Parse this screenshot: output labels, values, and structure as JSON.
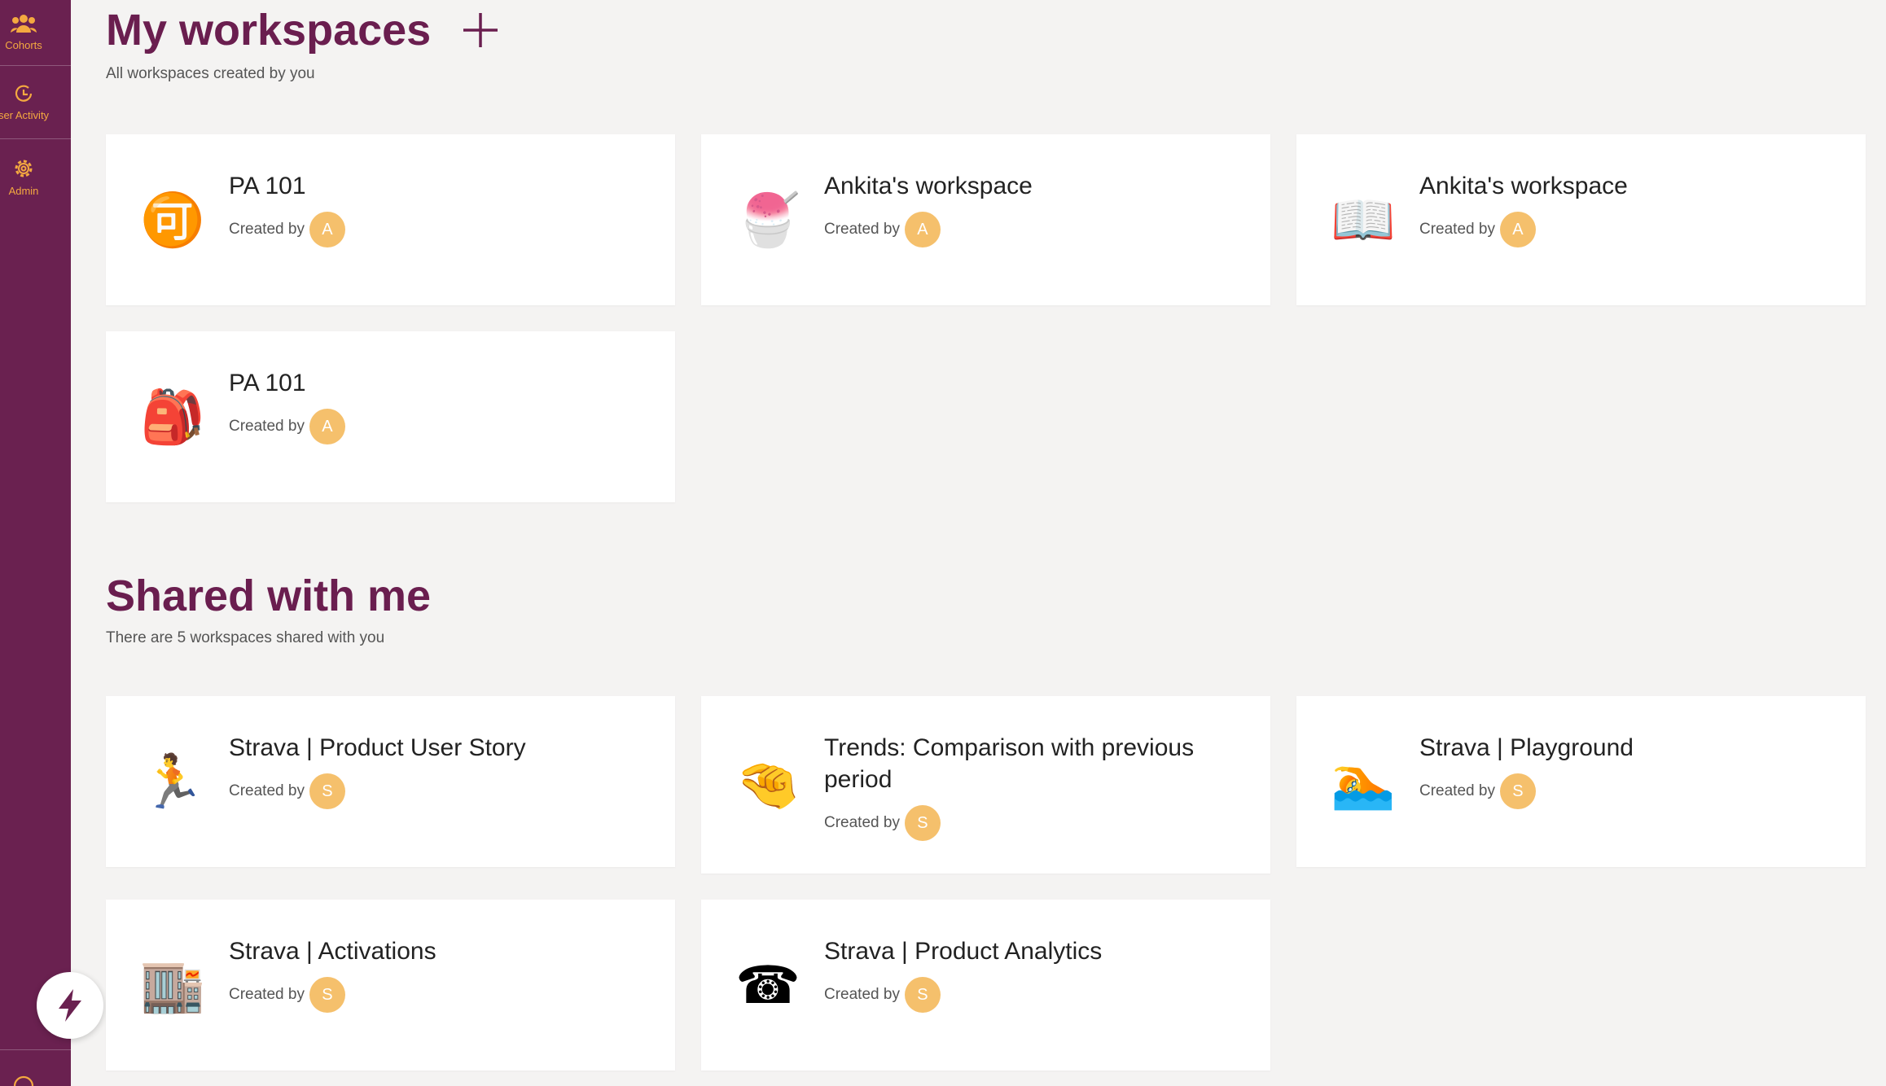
{
  "sidebar": {
    "nav": [
      "Cohorts",
      "ser Activity",
      "Admin"
    ]
  },
  "my_workspaces": {
    "title": "My workspaces",
    "subtitle": "All workspaces created by you",
    "cards": [
      {
        "icon": "🉑",
        "title": "PA 101",
        "created_by": "Created by",
        "avatar": "A"
      },
      {
        "icon": "🍧",
        "title": "Ankita's workspace",
        "created_by": "Created by",
        "avatar": "A"
      },
      {
        "icon": "📖",
        "title": "Ankita's workspace",
        "created_by": "Created by",
        "avatar": "A"
      },
      {
        "icon": "🎒",
        "title": "PA 101",
        "created_by": "Created by",
        "avatar": "A"
      }
    ]
  },
  "shared_with_me": {
    "title": "Shared with me",
    "subtitle": "There are 5 workspaces shared with you",
    "cards": [
      {
        "icon": "🏃",
        "title": "Strava | Product User Story",
        "created_by": "Created by",
        "avatar": "S"
      },
      {
        "icon": "🤏",
        "title": "Trends: Comparison with previous period",
        "created_by": "Created by",
        "avatar": "S"
      },
      {
        "icon": "🏊",
        "title": "Strava | Playground",
        "created_by": "Created by",
        "avatar": "S"
      },
      {
        "icon": "🏬",
        "title": "Strava | Activations",
        "created_by": "Created by",
        "avatar": "S"
      },
      {
        "icon": "☎",
        "title": "Strava | Product Analytics",
        "created_by": "Created by",
        "avatar": "S"
      }
    ]
  }
}
